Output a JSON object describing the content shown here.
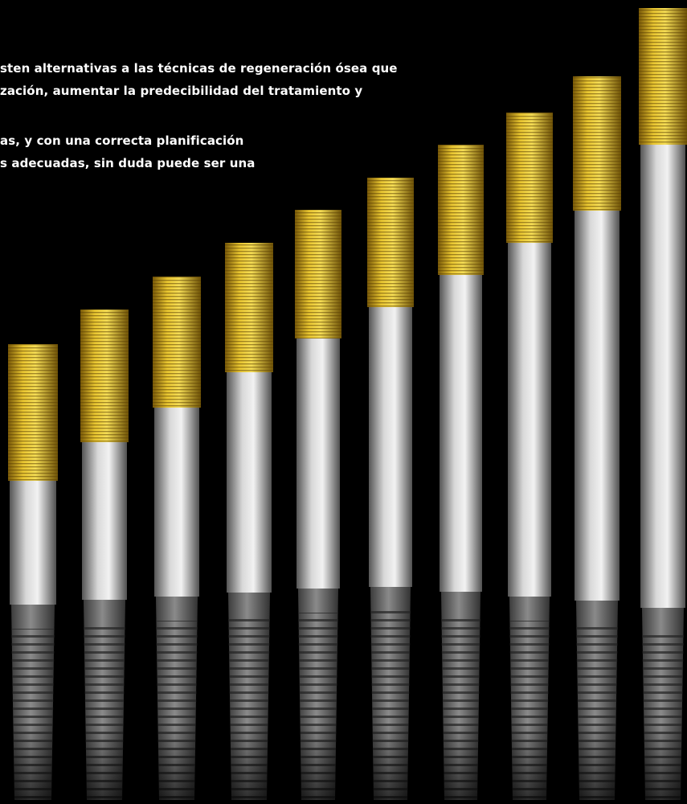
{
  "paragraph": {
    "lines": [
      "sten alternativas a las técnicas de regeneración ósea que",
      "zación, aumentar la predecibilidad del tratamiento y",
      "as, y con una correcta planificación",
      "s adecuadas, sin duda puede ser una"
    ]
  }
}
